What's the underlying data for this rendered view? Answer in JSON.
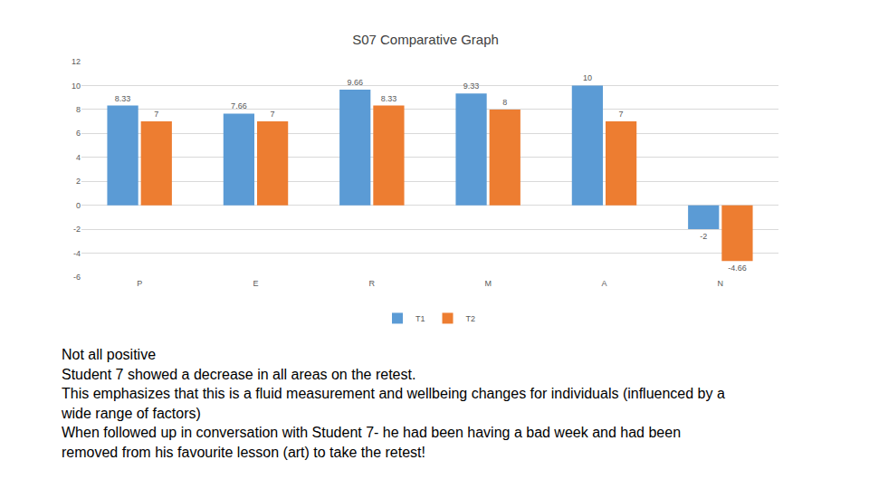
{
  "chart_data": {
    "type": "bar",
    "title": "S07 Comparative Graph",
    "categories": [
      "P",
      "E",
      "R",
      "M",
      "A",
      "N"
    ],
    "series": [
      {
        "name": "T1",
        "color": "#5b9bd5",
        "values": [
          8.33,
          7.66,
          9.66,
          9.33,
          10,
          -2
        ]
      },
      {
        "name": "T2",
        "color": "#ed7d31",
        "values": [
          7,
          7,
          8.33,
          8,
          7,
          -4.66
        ]
      }
    ],
    "ylim": [
      -6,
      12
    ],
    "yticks": [
      -6,
      -4,
      -2,
      0,
      2,
      4,
      6,
      8,
      10,
      12
    ],
    "grid": true,
    "data_labels": true,
    "legend": "bottom"
  },
  "notes": [
    "Not all positive",
    "Student 7 showed a decrease in all areas on the retest.",
    "This emphasizes that this is a fluid measurement and wellbeing changes for individuals (influenced by a wide range of factors)",
    "When followed up in conversation with Student 7- he had been having a bad week and had been removed from his favourite lesson (art) to take the retest!"
  ]
}
